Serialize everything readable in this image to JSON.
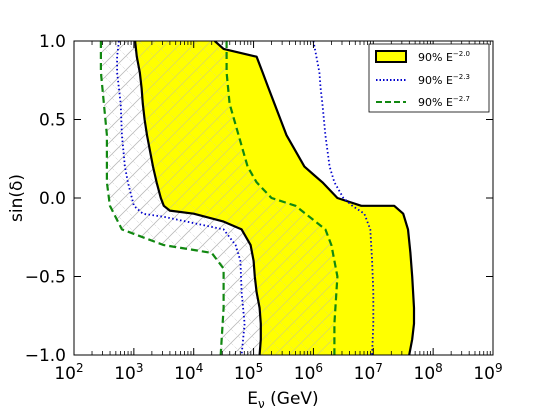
{
  "chart_data": {
    "type": "area",
    "x_scale": "log",
    "xlim_exponent": [
      2,
      9
    ],
    "ylim": [
      -1.0,
      1.0
    ],
    "xlabel_main": "E",
    "xlabel_sub": "ν",
    "xlabel_unit": " (GeV)",
    "ylabel": "sin(δ)",
    "x_ticks": [
      {
        "base": "10",
        "exp": "2"
      },
      {
        "base": "10",
        "exp": "3"
      },
      {
        "base": "10",
        "exp": "4"
      },
      {
        "base": "10",
        "exp": "5"
      },
      {
        "base": "10",
        "exp": "6"
      },
      {
        "base": "10",
        "exp": "7"
      },
      {
        "base": "10",
        "exp": "8"
      },
      {
        "base": "10",
        "exp": "9"
      }
    ],
    "y_ticks": [
      "1.0",
      "0.5",
      "0.0",
      "−0.5",
      "−1.0"
    ],
    "y_tick_values": [
      1.0,
      0.5,
      0.0,
      -0.5,
      -1.0
    ],
    "legend_position": "top-right",
    "colors": {
      "yellow": "#ffff00",
      "blue": "#0000cc",
      "green": "#118811",
      "black": "#000000",
      "hatch": "#b8b8b8"
    },
    "series": [
      {
        "name": "90% E",
        "exp": "−2.0",
        "style": "filled-solid",
        "left": [
          [
            3.02,
            1.0
          ],
          [
            3.05,
            0.9
          ],
          [
            3.1,
            0.8
          ],
          [
            3.13,
            0.7
          ],
          [
            3.15,
            0.6
          ],
          [
            3.18,
            0.5
          ],
          [
            3.22,
            0.4
          ],
          [
            3.27,
            0.3
          ],
          [
            3.32,
            0.2
          ],
          [
            3.38,
            0.1
          ],
          [
            3.45,
            0.0
          ],
          [
            3.5,
            -0.05
          ],
          [
            3.6,
            -0.08
          ],
          [
            4.0,
            -0.1
          ],
          [
            4.5,
            -0.15
          ],
          [
            4.8,
            -0.2
          ],
          [
            4.95,
            -0.3
          ],
          [
            5.0,
            -0.4
          ],
          [
            5.02,
            -0.5
          ],
          [
            5.05,
            -0.6
          ],
          [
            5.1,
            -0.7
          ],
          [
            5.12,
            -0.8
          ],
          [
            5.12,
            -0.9
          ],
          [
            5.1,
            -1.0
          ]
        ],
        "right": [
          [
            4.35,
            1.0
          ],
          [
            4.5,
            0.95
          ],
          [
            5.05,
            0.9
          ],
          [
            5.15,
            0.8
          ],
          [
            5.25,
            0.7
          ],
          [
            5.35,
            0.6
          ],
          [
            5.45,
            0.5
          ],
          [
            5.55,
            0.4
          ],
          [
            5.7,
            0.3
          ],
          [
            5.85,
            0.2
          ],
          [
            6.0,
            0.15
          ],
          [
            6.15,
            0.1
          ],
          [
            6.4,
            0.0
          ],
          [
            6.8,
            -0.05
          ],
          [
            7.35,
            -0.05
          ],
          [
            7.5,
            -0.1
          ],
          [
            7.58,
            -0.2
          ],
          [
            7.62,
            -0.35
          ],
          [
            7.65,
            -0.5
          ],
          [
            7.68,
            -0.7
          ],
          [
            7.68,
            -0.8
          ],
          [
            7.65,
            -0.9
          ],
          [
            7.6,
            -1.0
          ]
        ]
      },
      {
        "name": "90% E",
        "exp": "−2.3",
        "style": "dotted",
        "left": [
          [
            2.75,
            1.0
          ],
          [
            2.72,
            0.9
          ],
          [
            2.72,
            0.8
          ],
          [
            2.75,
            0.7
          ],
          [
            2.78,
            0.6
          ],
          [
            2.8,
            0.4
          ],
          [
            2.85,
            0.2
          ],
          [
            2.9,
            0.1
          ],
          [
            3.0,
            -0.05
          ],
          [
            3.15,
            -0.1
          ],
          [
            3.5,
            -0.12
          ],
          [
            4.0,
            -0.16
          ],
          [
            4.5,
            -0.2
          ],
          [
            4.7,
            -0.3
          ],
          [
            4.78,
            -0.4
          ],
          [
            4.8,
            -0.6
          ],
          [
            4.85,
            -0.8
          ],
          [
            4.8,
            -1.0
          ]
        ],
        "right": [
          [
            6.0,
            1.0
          ],
          [
            6.05,
            0.9
          ],
          [
            6.1,
            0.8
          ],
          [
            6.12,
            0.7
          ],
          [
            6.15,
            0.6
          ],
          [
            6.2,
            0.4
          ],
          [
            6.27,
            0.2
          ],
          [
            6.35,
            0.1
          ],
          [
            6.5,
            0.0
          ],
          [
            6.65,
            -0.05
          ],
          [
            6.85,
            -0.1
          ],
          [
            6.95,
            -0.2
          ],
          [
            6.98,
            -0.4
          ],
          [
            7.0,
            -0.6
          ],
          [
            7.0,
            -0.8
          ],
          [
            6.98,
            -1.0
          ]
        ]
      },
      {
        "name": "90% E",
        "exp": "−2.7",
        "style": "dashed",
        "left": [
          [
            2.45,
            1.0
          ],
          [
            2.45,
            0.8
          ],
          [
            2.5,
            0.6
          ],
          [
            2.55,
            0.4
          ],
          [
            2.55,
            0.2
          ],
          [
            2.55,
            0.1
          ],
          [
            2.6,
            -0.05
          ],
          [
            2.8,
            -0.2
          ],
          [
            3.5,
            -0.3
          ],
          [
            4.3,
            -0.35
          ],
          [
            4.5,
            -0.45
          ],
          [
            4.5,
            -0.7
          ],
          [
            4.45,
            -1.0
          ]
        ],
        "right": [
          [
            4.55,
            1.0
          ],
          [
            4.55,
            0.8
          ],
          [
            4.6,
            0.6
          ],
          [
            4.75,
            0.4
          ],
          [
            4.9,
            0.2
          ],
          [
            5.05,
            0.1
          ],
          [
            5.3,
            0.0
          ],
          [
            5.7,
            -0.05
          ],
          [
            6.2,
            -0.2
          ],
          [
            6.3,
            -0.3
          ],
          [
            6.4,
            -0.5
          ],
          [
            6.35,
            -0.8
          ],
          [
            6.35,
            -1.0
          ]
        ]
      }
    ]
  }
}
